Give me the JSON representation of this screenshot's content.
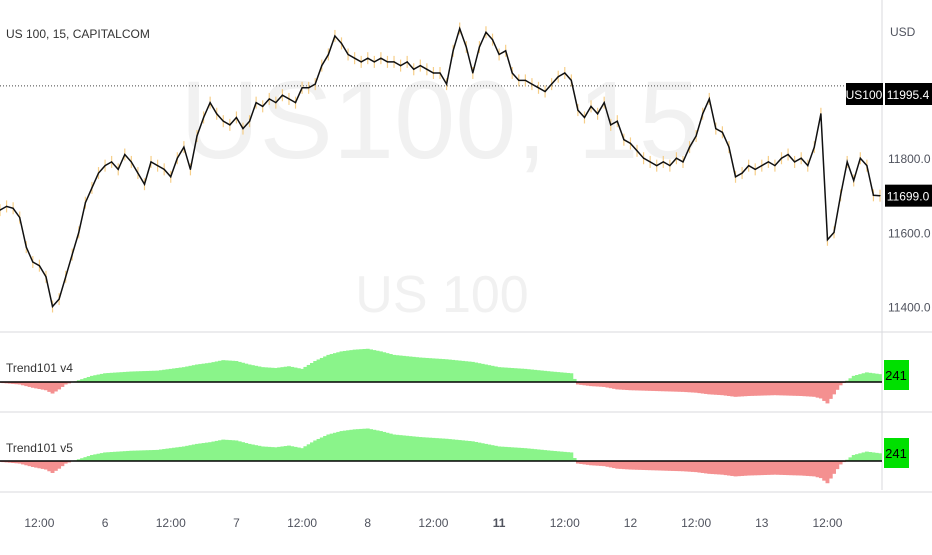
{
  "chart_data": {
    "type": "line",
    "title": "US 100, 15, CAPITALCOM",
    "watermark": {
      "primary": "US100, 15",
      "secondary": "US 100"
    },
    "currency_label": "USD",
    "symbol_badge": "US100",
    "last_value_label": "11699.0",
    "marker_level_label": "11995.4",
    "marker_level": 11995.4,
    "last_value": 11699.0,
    "ylim": [
      11350,
      12200
    ],
    "y_ticks": [
      {
        "value": 11800,
        "label": "11800.0"
      },
      {
        "value": 11600,
        "label": "11600.0"
      },
      {
        "value": 11400,
        "label": "11400.0"
      }
    ],
    "x_ticks": [
      {
        "t": 6,
        "label": "12:00",
        "bold": false
      },
      {
        "t": 16,
        "label": "6",
        "bold": false
      },
      {
        "t": 26,
        "label": "12:00",
        "bold": false
      },
      {
        "t": 36,
        "label": "7",
        "bold": false
      },
      {
        "t": 46,
        "label": "12:00",
        "bold": false
      },
      {
        "t": 56,
        "label": "8",
        "bold": false
      },
      {
        "t": 66,
        "label": "12:00",
        "bold": false
      },
      {
        "t": 76,
        "label": "11",
        "bold": true
      },
      {
        "t": 86,
        "label": "12:00",
        "bold": false
      },
      {
        "t": 96,
        "label": "12",
        "bold": false
      },
      {
        "t": 106,
        "label": "12:00",
        "bold": false
      },
      {
        "t": 116,
        "label": "13",
        "bold": false
      },
      {
        "t": 126,
        "label": "12:00",
        "bold": false
      }
    ],
    "price_series": [
      [
        0,
        11660
      ],
      [
        1,
        11670
      ],
      [
        2,
        11665
      ],
      [
        3,
        11640
      ],
      [
        4,
        11560
      ],
      [
        5,
        11520
      ],
      [
        6,
        11510
      ],
      [
        7,
        11480
      ],
      [
        8,
        11400
      ],
      [
        9,
        11420
      ],
      [
        10,
        11480
      ],
      [
        11,
        11540
      ],
      [
        12,
        11600
      ],
      [
        13,
        11680
      ],
      [
        14,
        11720
      ],
      [
        15,
        11760
      ],
      [
        16,
        11780
      ],
      [
        17,
        11790
      ],
      [
        18,
        11770
      ],
      [
        19,
        11810
      ],
      [
        20,
        11790
      ],
      [
        21,
        11760
      ],
      [
        22,
        11730
      ],
      [
        23,
        11790
      ],
      [
        24,
        11780
      ],
      [
        25,
        11770
      ],
      [
        26,
        11750
      ],
      [
        27,
        11800
      ],
      [
        28,
        11830
      ],
      [
        29,
        11770
      ],
      [
        30,
        11860
      ],
      [
        31,
        11910
      ],
      [
        32,
        11950
      ],
      [
        33,
        11920
      ],
      [
        34,
        11900
      ],
      [
        35,
        11890
      ],
      [
        36,
        11910
      ],
      [
        37,
        11880
      ],
      [
        38,
        11900
      ],
      [
        39,
        11950
      ],
      [
        40,
        11940
      ],
      [
        41,
        11960
      ],
      [
        42,
        11950
      ],
      [
        43,
        11970
      ],
      [
        44,
        11960
      ],
      [
        45,
        11950
      ],
      [
        46,
        11990
      ],
      [
        47,
        11990
      ],
      [
        48,
        12000
      ],
      [
        49,
        12050
      ],
      [
        50,
        12080
      ],
      [
        51,
        12130
      ],
      [
        52,
        12110
      ],
      [
        53,
        12080
      ],
      [
        54,
        12070
      ],
      [
        55,
        12060
      ],
      [
        56,
        12070
      ],
      [
        57,
        12060
      ],
      [
        58,
        12070
      ],
      [
        59,
        12060
      ],
      [
        60,
        12060
      ],
      [
        61,
        12050
      ],
      [
        62,
        12060
      ],
      [
        63,
        12040
      ],
      [
        64,
        12050
      ],
      [
        65,
        12040
      ],
      [
        66,
        12030
      ],
      [
        67,
        12030
      ],
      [
        68,
        12000
      ],
      [
        69,
        12090
      ],
      [
        70,
        12150
      ],
      [
        71,
        12100
      ],
      [
        72,
        12030
      ],
      [
        73,
        12100
      ],
      [
        74,
        12140
      ],
      [
        75,
        12120
      ],
      [
        76,
        12080
      ],
      [
        77,
        12090
      ],
      [
        78,
        12030
      ],
      [
        79,
        12010
      ],
      [
        80,
        12010
      ],
      [
        81,
        12000
      ],
      [
        82,
        11990
      ],
      [
        83,
        11980
      ],
      [
        84,
        12000
      ],
      [
        85,
        12020
      ],
      [
        86,
        12030
      ],
      [
        87,
        12010
      ],
      [
        88,
        11930
      ],
      [
        89,
        11910
      ],
      [
        90,
        11940
      ],
      [
        91,
        11920
      ],
      [
        92,
        11950
      ],
      [
        93,
        11890
      ],
      [
        94,
        11900
      ],
      [
        95,
        11850
      ],
      [
        96,
        11840
      ],
      [
        97,
        11820
      ],
      [
        98,
        11800
      ],
      [
        99,
        11790
      ],
      [
        100,
        11780
      ],
      [
        101,
        11790
      ],
      [
        102,
        11780
      ],
      [
        103,
        11800
      ],
      [
        104,
        11790
      ],
      [
        105,
        11830
      ],
      [
        106,
        11860
      ],
      [
        107,
        11920
      ],
      [
        108,
        11960
      ],
      [
        109,
        11880
      ],
      [
        110,
        11870
      ],
      [
        111,
        11830
      ],
      [
        112,
        11750
      ],
      [
        113,
        11760
      ],
      [
        114,
        11780
      ],
      [
        115,
        11770
      ],
      [
        116,
        11780
      ],
      [
        117,
        11790
      ],
      [
        118,
        11780
      ],
      [
        119,
        11800
      ],
      [
        120,
        11810
      ],
      [
        121,
        11790
      ],
      [
        122,
        11800
      ],
      [
        123,
        11780
      ],
      [
        124,
        11830
      ],
      [
        125,
        11920
      ],
      [
        126,
        11580
      ],
      [
        127,
        11600
      ],
      [
        128,
        11700
      ],
      [
        129,
        11790
      ],
      [
        130,
        11740
      ],
      [
        131,
        11800
      ],
      [
        132,
        11780
      ],
      [
        133,
        11700
      ],
      [
        134,
        11699
      ]
    ],
    "max_t": 134,
    "indicators": [
      {
        "name": "Trend101 v4",
        "value_label": "241",
        "ylim": [
          -60,
          100
        ],
        "pos_color": "#8af48a",
        "neg_color": "#f49090",
        "values": [
          [
            0,
            -2
          ],
          [
            3,
            -6
          ],
          [
            5,
            -14
          ],
          [
            7,
            -20
          ],
          [
            8,
            -28
          ],
          [
            9,
            -18
          ],
          [
            10,
            -6
          ],
          [
            12,
            4
          ],
          [
            14,
            14
          ],
          [
            16,
            20
          ],
          [
            18,
            22
          ],
          [
            20,
            24
          ],
          [
            24,
            26
          ],
          [
            28,
            34
          ],
          [
            30,
            40
          ],
          [
            32,
            44
          ],
          [
            34,
            50
          ],
          [
            36,
            48
          ],
          [
            38,
            40
          ],
          [
            40,
            34
          ],
          [
            42,
            32
          ],
          [
            44,
            36
          ],
          [
            46,
            30
          ],
          [
            48,
            48
          ],
          [
            50,
            62
          ],
          [
            52,
            70
          ],
          [
            54,
            74
          ],
          [
            56,
            76
          ],
          [
            58,
            70
          ],
          [
            60,
            62
          ],
          [
            64,
            56
          ],
          [
            68,
            52
          ],
          [
            72,
            46
          ],
          [
            76,
            34
          ],
          [
            80,
            30
          ],
          [
            84,
            24
          ],
          [
            87,
            20
          ],
          [
            88,
            -6
          ],
          [
            90,
            -10
          ],
          [
            92,
            -12
          ],
          [
            94,
            -18
          ],
          [
            96,
            -20
          ],
          [
            100,
            -22
          ],
          [
            104,
            -24
          ],
          [
            106,
            -26
          ],
          [
            108,
            -30
          ],
          [
            110,
            -32
          ],
          [
            112,
            -36
          ],
          [
            114,
            -34
          ],
          [
            118,
            -32
          ],
          [
            122,
            -34
          ],
          [
            124,
            -36
          ],
          [
            125,
            -40
          ],
          [
            126,
            -52
          ],
          [
            127,
            -30
          ],
          [
            128,
            -8
          ],
          [
            130,
            14
          ],
          [
            132,
            22
          ],
          [
            134,
            18
          ]
        ]
      },
      {
        "name": "Trend101 v5",
        "value_label": "241",
        "ylim": [
          -60,
          100
        ],
        "pos_color": "#8af48a",
        "neg_color": "#f49090",
        "values": [
          [
            0,
            -2
          ],
          [
            3,
            -6
          ],
          [
            5,
            -14
          ],
          [
            7,
            -20
          ],
          [
            8,
            -28
          ],
          [
            9,
            -18
          ],
          [
            10,
            -6
          ],
          [
            12,
            4
          ],
          [
            14,
            14
          ],
          [
            16,
            20
          ],
          [
            18,
            22
          ],
          [
            20,
            24
          ],
          [
            24,
            26
          ],
          [
            28,
            34
          ],
          [
            30,
            40
          ],
          [
            32,
            44
          ],
          [
            34,
            50
          ],
          [
            36,
            48
          ],
          [
            38,
            40
          ],
          [
            40,
            34
          ],
          [
            42,
            32
          ],
          [
            44,
            36
          ],
          [
            46,
            30
          ],
          [
            48,
            48
          ],
          [
            50,
            62
          ],
          [
            52,
            70
          ],
          [
            54,
            74
          ],
          [
            56,
            76
          ],
          [
            58,
            70
          ],
          [
            60,
            62
          ],
          [
            64,
            56
          ],
          [
            68,
            52
          ],
          [
            72,
            46
          ],
          [
            76,
            34
          ],
          [
            80,
            30
          ],
          [
            84,
            24
          ],
          [
            87,
            20
          ],
          [
            88,
            -6
          ],
          [
            90,
            -10
          ],
          [
            92,
            -12
          ],
          [
            94,
            -18
          ],
          [
            96,
            -20
          ],
          [
            100,
            -22
          ],
          [
            104,
            -24
          ],
          [
            106,
            -26
          ],
          [
            108,
            -30
          ],
          [
            110,
            -32
          ],
          [
            112,
            -36
          ],
          [
            114,
            -34
          ],
          [
            118,
            -32
          ],
          [
            122,
            -34
          ],
          [
            124,
            -36
          ],
          [
            125,
            -40
          ],
          [
            126,
            -52
          ],
          [
            127,
            -30
          ],
          [
            128,
            -8
          ],
          [
            130,
            14
          ],
          [
            132,
            22
          ],
          [
            134,
            18
          ]
        ]
      }
    ],
    "colors": {
      "line": "#111111",
      "wick": "#f5c36b",
      "axis_text": "#50535e",
      "badge_bg": "#000000",
      "badge_text": "#ffffff",
      "indicator_badge_bg": "#00e000",
      "indicator_badge_text": "#000000",
      "grid_sep": "#d9dadd"
    }
  }
}
